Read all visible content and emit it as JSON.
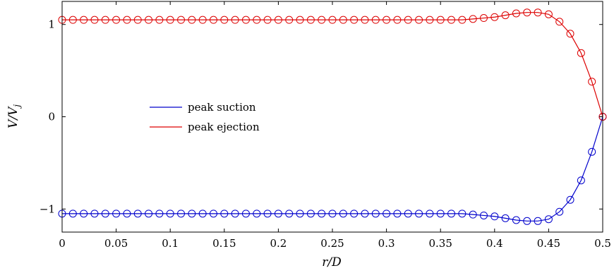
{
  "chart_data": {
    "type": "line",
    "title": "",
    "xlabel": "r/D",
    "ylabel": "V/V",
    "ylabel_subscript": "j",
    "xlim": [
      0,
      0.5
    ],
    "ylim": [
      -1.25,
      1.25
    ],
    "x_ticks": [
      0,
      0.05,
      0.1,
      0.15,
      0.2,
      0.25,
      0.3,
      0.35,
      0.4,
      0.45,
      0.5
    ],
    "x_tick_labels": [
      "0",
      "0.05",
      "0.1",
      "0.15",
      "0.2",
      "0.25",
      "0.3",
      "0.35",
      "0.4",
      "0.45",
      "0.5"
    ],
    "y_ticks": [
      -1,
      0,
      1
    ],
    "y_tick_labels": [
      "−1",
      "0",
      "1"
    ],
    "grid": false,
    "legend_position": "center-left",
    "marker": "open-circle",
    "x": [
      0,
      0.01,
      0.02,
      0.03,
      0.04,
      0.05,
      0.06,
      0.07,
      0.08,
      0.09,
      0.1,
      0.11,
      0.12,
      0.13,
      0.14,
      0.15,
      0.16,
      0.17,
      0.18,
      0.19,
      0.2,
      0.21,
      0.22,
      0.23,
      0.24,
      0.25,
      0.26,
      0.27,
      0.28,
      0.29,
      0.3,
      0.31,
      0.32,
      0.33,
      0.34,
      0.35,
      0.36,
      0.37,
      0.38,
      0.39,
      0.4,
      0.41,
      0.42,
      0.43,
      0.44,
      0.45,
      0.46,
      0.47,
      0.48,
      0.49,
      0.5
    ],
    "series": [
      {
        "name": "peak suction",
        "color": "#0000cc",
        "values": [
          -1.05,
          -1.05,
          -1.05,
          -1.05,
          -1.05,
          -1.05,
          -1.05,
          -1.05,
          -1.05,
          -1.05,
          -1.05,
          -1.05,
          -1.05,
          -1.05,
          -1.05,
          -1.05,
          -1.05,
          -1.05,
          -1.05,
          -1.05,
          -1.05,
          -1.05,
          -1.05,
          -1.05,
          -1.05,
          -1.05,
          -1.05,
          -1.05,
          -1.05,
          -1.05,
          -1.05,
          -1.05,
          -1.05,
          -1.05,
          -1.05,
          -1.05,
          -1.05,
          -1.05,
          -1.06,
          -1.07,
          -1.08,
          -1.1,
          -1.12,
          -1.13,
          -1.13,
          -1.11,
          -1.03,
          -0.9,
          -0.69,
          -0.38,
          0.0
        ]
      },
      {
        "name": "peak ejection",
        "color": "#dd0000",
        "values": [
          1.05,
          1.05,
          1.05,
          1.05,
          1.05,
          1.05,
          1.05,
          1.05,
          1.05,
          1.05,
          1.05,
          1.05,
          1.05,
          1.05,
          1.05,
          1.05,
          1.05,
          1.05,
          1.05,
          1.05,
          1.05,
          1.05,
          1.05,
          1.05,
          1.05,
          1.05,
          1.05,
          1.05,
          1.05,
          1.05,
          1.05,
          1.05,
          1.05,
          1.05,
          1.05,
          1.05,
          1.05,
          1.05,
          1.06,
          1.07,
          1.08,
          1.1,
          1.12,
          1.13,
          1.13,
          1.11,
          1.03,
          0.9,
          0.69,
          0.38,
          0.0
        ]
      }
    ]
  }
}
